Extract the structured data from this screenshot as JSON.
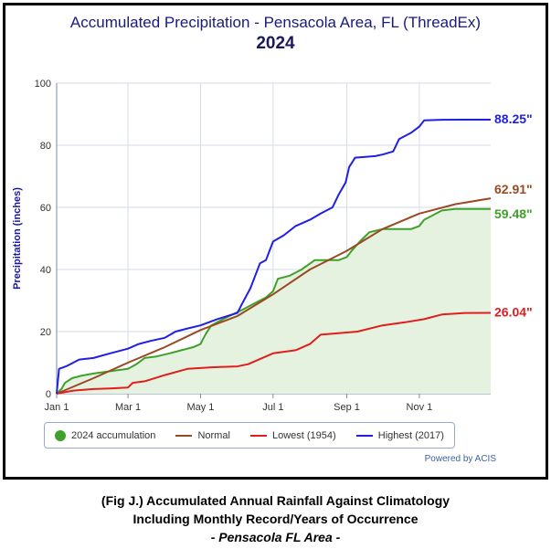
{
  "chart_data": {
    "type": "line",
    "title": "Accumulated Precipitation - Pensacola Area, FL (ThreadEx)",
    "subtitle": "2024",
    "ylabel": "Precipitation (inches)",
    "xlabel": "",
    "ylim": [
      0,
      100
    ],
    "yticks": [
      0,
      20,
      40,
      60,
      80,
      100
    ],
    "xticks": [
      "Jan 1",
      "Mar 1",
      "May 1",
      "Jul 1",
      "Sep 1",
      "Nov 1"
    ],
    "grid": true,
    "legend_position": "bottom",
    "series": [
      {
        "name": "2024 accumulation",
        "color": "#3fa02a",
        "fill": "#e6f2e0",
        "end_label": "59.48\"",
        "points": [
          [
            "Jan 1",
            0
          ],
          [
            "Jan 5",
            1.5
          ],
          [
            "Jan 8",
            3.5
          ],
          [
            "Jan 14",
            5
          ],
          [
            "Jan 22",
            5.8
          ],
          [
            "Feb 1",
            6.5
          ],
          [
            "Feb 10",
            7
          ],
          [
            "Feb 20",
            7.5
          ],
          [
            "Mar 1",
            8
          ],
          [
            "Mar 8",
            9.5
          ],
          [
            "Mar 15",
            11.5
          ],
          [
            "Mar 25",
            12
          ],
          [
            "Apr 5",
            13
          ],
          [
            "Apr 15",
            14
          ],
          [
            "Apr 25",
            15
          ],
          [
            "May 1",
            16
          ],
          [
            "May 5",
            19
          ],
          [
            "May 10",
            22
          ],
          [
            "May 15",
            23
          ],
          [
            "May 25",
            25
          ],
          [
            "Jun 5",
            27
          ],
          [
            "Jun 15",
            29
          ],
          [
            "Jun 25",
            31
          ],
          [
            "Jul 1",
            33
          ],
          [
            "Jul 5",
            37
          ],
          [
            "Jul 15",
            38
          ],
          [
            "Jul 25",
            40
          ],
          [
            "Aug 5",
            43
          ],
          [
            "Aug 15",
            43
          ],
          [
            "Aug 25",
            43
          ],
          [
            "Sep 1",
            44
          ],
          [
            "Sep 5",
            46
          ],
          [
            "Sep 12",
            49
          ],
          [
            "Sep 20",
            52
          ],
          [
            "Oct 1",
            53
          ],
          [
            "Oct 15",
            53
          ],
          [
            "Oct 25",
            53
          ],
          [
            "Nov 1",
            54
          ],
          [
            "Nov 5",
            56
          ],
          [
            "Nov 10",
            57
          ],
          [
            "Nov 20",
            59
          ],
          [
            "Dec 1",
            59.5
          ],
          [
            "Dec 31",
            59.48
          ]
        ]
      },
      {
        "name": "Normal",
        "color": "#9a4a22",
        "end_label": "62.91\"",
        "points": [
          [
            "Jan 1",
            0
          ],
          [
            "Feb 1",
            5
          ],
          [
            "Mar 1",
            10
          ],
          [
            "Apr 1",
            15
          ],
          [
            "May 1",
            20.5
          ],
          [
            "Jun 1",
            25
          ],
          [
            "Jul 1",
            32
          ],
          [
            "Aug 1",
            40
          ],
          [
            "Sep 1",
            46
          ],
          [
            "Oct 1",
            53
          ],
          [
            "Nov 1",
            58
          ],
          [
            "Dec 1",
            61
          ],
          [
            "Dec 31",
            62.91
          ]
        ]
      },
      {
        "name": "Lowest (1954)",
        "color": "#e01e1e",
        "end_label": "26.04\"",
        "points": [
          [
            "Jan 1",
            0
          ],
          [
            "Jan 15",
            1
          ],
          [
            "Feb 1",
            1.5
          ],
          [
            "Feb 15",
            1.7
          ],
          [
            "Mar 1",
            2
          ],
          [
            "Mar 5",
            3.5
          ],
          [
            "Mar 15",
            4
          ],
          [
            "Apr 1",
            6
          ],
          [
            "Apr 20",
            8
          ],
          [
            "May 10",
            8.5
          ],
          [
            "Jun 1",
            8.8
          ],
          [
            "Jun 10",
            9.5
          ],
          [
            "Jul 1",
            13
          ],
          [
            "Jul 20",
            14
          ],
          [
            "Aug 1",
            16
          ],
          [
            "Aug 10",
            19
          ],
          [
            "Aug 25",
            19.5
          ],
          [
            "Sep 10",
            20
          ],
          [
            "Oct 1",
            22
          ],
          [
            "Oct 20",
            23
          ],
          [
            "Nov 5",
            24
          ],
          [
            "Nov 20",
            25.5
          ],
          [
            "Dec 10",
            26
          ],
          [
            "Dec 31",
            26.04
          ]
        ]
      },
      {
        "name": "Highest (2017)",
        "color": "#1f1fe6",
        "end_label": "88.25\"",
        "points": [
          [
            "Jan 1",
            0
          ],
          [
            "Jan 3",
            8
          ],
          [
            "Jan 10",
            9
          ],
          [
            "Jan 20",
            11
          ],
          [
            "Feb 1",
            11.5
          ],
          [
            "Feb 15",
            13
          ],
          [
            "Mar 1",
            14.5
          ],
          [
            "Mar 10",
            16
          ],
          [
            "Mar 20",
            17
          ],
          [
            "Apr 1",
            18
          ],
          [
            "Apr 10",
            20
          ],
          [
            "Apr 20",
            21
          ],
          [
            "May 1",
            22
          ],
          [
            "May 15",
            24
          ],
          [
            "Jun 1",
            26
          ],
          [
            "Jun 5",
            29
          ],
          [
            "Jun 12",
            34
          ],
          [
            "Jun 20",
            42
          ],
          [
            "Jun 25",
            43
          ],
          [
            "Jul 1",
            49
          ],
          [
            "Jul 10",
            51
          ],
          [
            "Jul 20",
            54
          ],
          [
            "Aug 1",
            56
          ],
          [
            "Aug 10",
            58
          ],
          [
            "Aug 20",
            60
          ],
          [
            "Aug 25",
            64
          ],
          [
            "Aug 31",
            68
          ],
          [
            "Sep 3",
            73
          ],
          [
            "Sep 8",
            76
          ],
          [
            "Sep 25",
            76.5
          ],
          [
            "Oct 1",
            77
          ],
          [
            "Oct 10",
            78
          ],
          [
            "Oct 15",
            82
          ],
          [
            "Oct 25",
            84
          ],
          [
            "Nov 1",
            86
          ],
          [
            "Nov 5",
            88
          ],
          [
            "Nov 20",
            88.2
          ],
          [
            "Dec 31",
            88.25
          ]
        ]
      }
    ]
  },
  "credits": "Powered by ACIS",
  "caption": {
    "line1": "(Fig J.) Accumulated Annual Rainfall Against  Climatology",
    "line2": "Including Monthly Record/Years of Occurrence",
    "line3": "- Pensacola FL Area -"
  }
}
